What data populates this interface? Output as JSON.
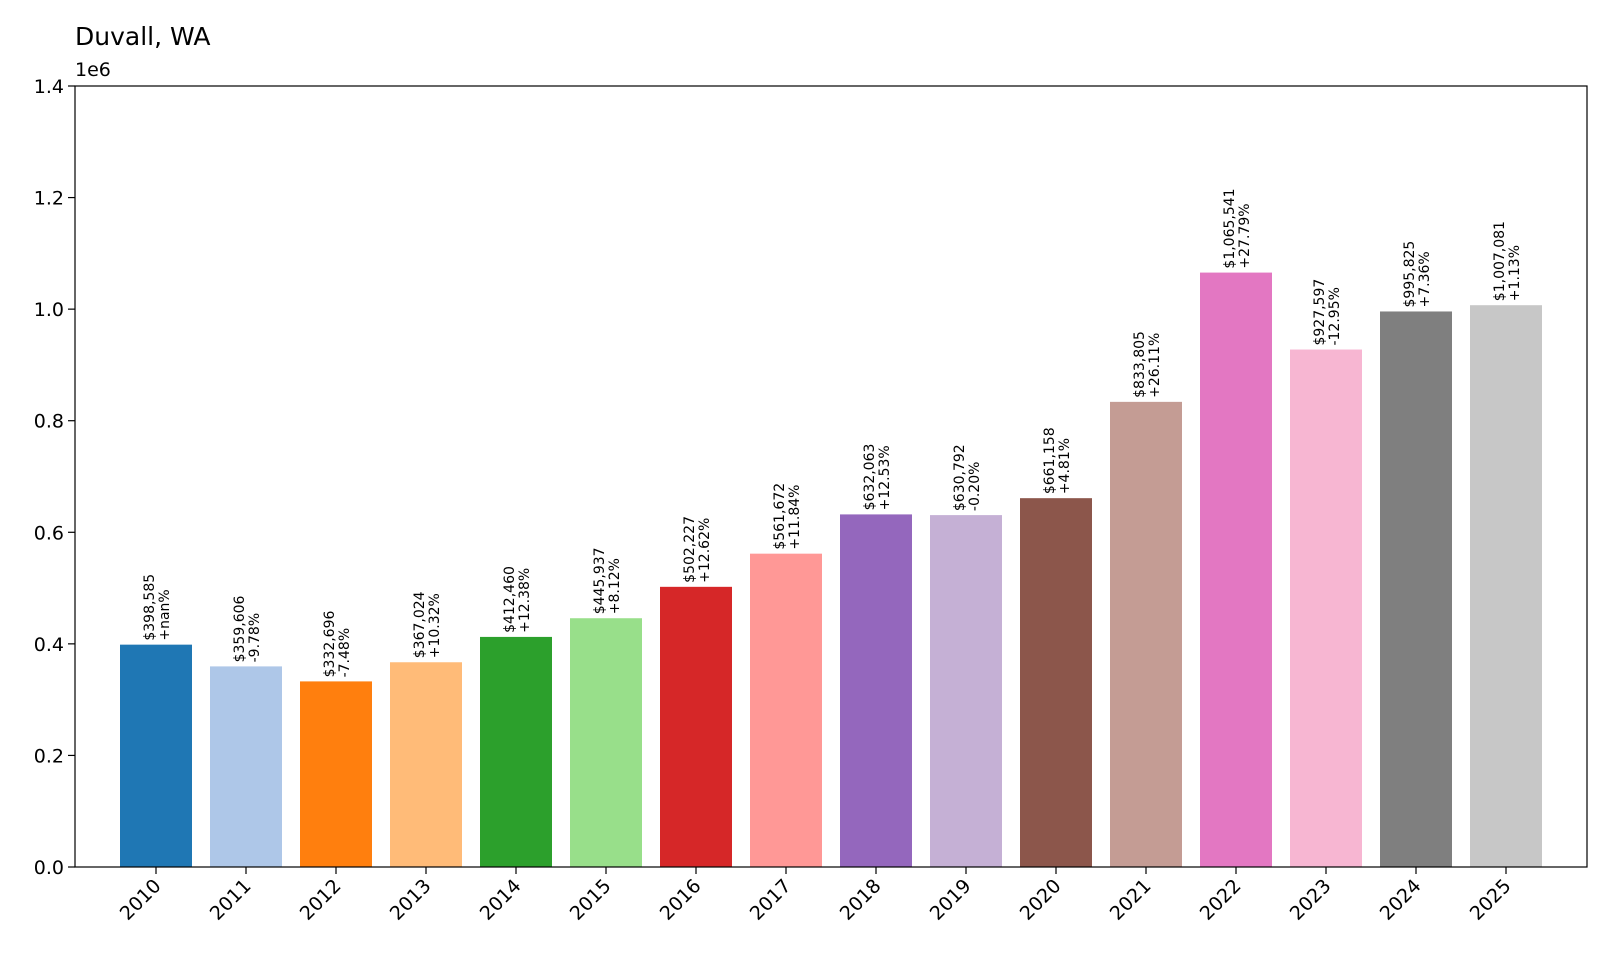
{
  "chart_data": {
    "type": "bar",
    "title": "Duvall, WA",
    "y_offset_label": "1e6",
    "xlabel": "",
    "ylabel": "",
    "ylim": [
      0,
      1.4
    ],
    "y_scale_factor": 1000000,
    "yticks": [
      "0.0",
      "0.2",
      "0.4",
      "0.6",
      "0.8",
      "1.0",
      "1.2",
      "1.4"
    ],
    "grid": false,
    "categories": [
      "2010",
      "2011",
      "2012",
      "2013",
      "2014",
      "2015",
      "2016",
      "2017",
      "2018",
      "2019",
      "2020",
      "2021",
      "2022",
      "2023",
      "2024",
      "2025"
    ],
    "values": [
      398585,
      359606,
      332696,
      367024,
      412460,
      445937,
      502227,
      561672,
      632063,
      630792,
      661158,
      833805,
      1065541,
      927597,
      995825,
      1007081
    ],
    "value_labels": [
      "$398,585",
      "$359,606",
      "$332,696",
      "$367,024",
      "$412,460",
      "$445,937",
      "$502,227",
      "$561,672",
      "$632,063",
      "$630,792",
      "$661,158",
      "$833,805",
      "$1,065,541",
      "$927,597",
      "$995,825",
      "$1,007,081"
    ],
    "change_labels": [
      "+nan%",
      "-9.78%",
      "-7.48%",
      "+10.32%",
      "+12.38%",
      "+8.12%",
      "+12.62%",
      "+11.84%",
      "+12.53%",
      "-0.20%",
      "+4.81%",
      "+26.11%",
      "+27.79%",
      "-12.95%",
      "+7.36%",
      "+1.13%"
    ],
    "colors": [
      "#1f77b4",
      "#aec7e8",
      "#ff7f0e",
      "#ffbb78",
      "#2ca02c",
      "#98df8a",
      "#d62728",
      "#ff9896",
      "#9467bd",
      "#c5b0d5",
      "#8c564b",
      "#c49c94",
      "#e377c2",
      "#f7b6d2",
      "#7f7f7f",
      "#c7c7c7"
    ]
  }
}
